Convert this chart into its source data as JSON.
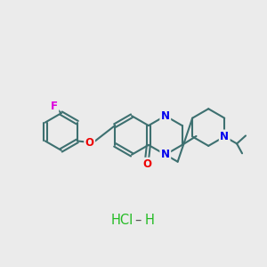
{
  "background_color": "#ebebeb",
  "bond_color": "#3d7070",
  "bond_width": 1.5,
  "atom_colors": {
    "F": "#dd00dd",
    "O": "#ee0000",
    "N": "#0000ee",
    "Cl": "#22bb22",
    "H_label": "#22bb22",
    "C": "#3d7070"
  },
  "font_size_atom": 8.5,
  "font_size_hcl": 10.5
}
